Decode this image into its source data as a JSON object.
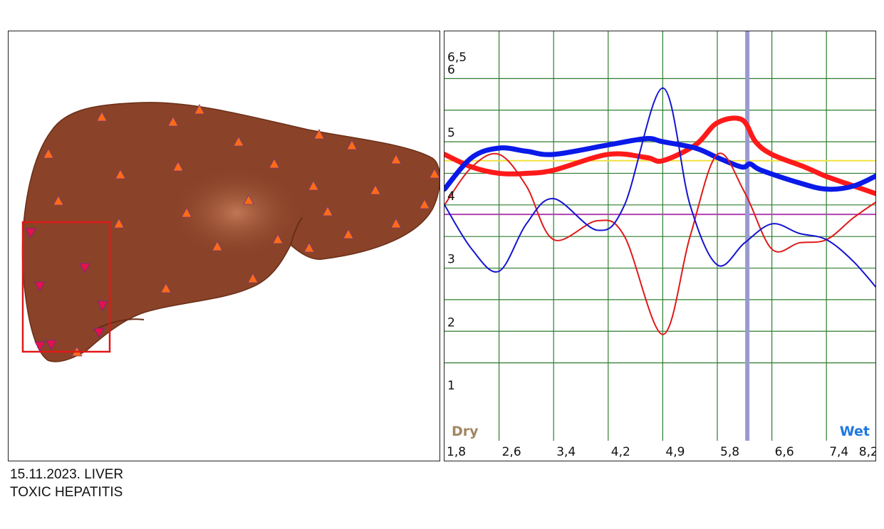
{
  "caption": {
    "line1": "15.11.2023. LIVER",
    "line2": "TOXIC HEPATITIS"
  },
  "liver_panel": {
    "organ_color": "#8a4328",
    "highlight_color": "#c0704e",
    "selection_box_color": "#e01818",
    "marker_up_color": "#ff6a18",
    "marker_down_color": "#e8104a"
  },
  "chart_data": {
    "type": "line",
    "x_ticks": [
      "1,8",
      "2,6",
      "3,4",
      "4,2",
      "4,9",
      "5,8",
      "6,6",
      "7,4",
      "8,2"
    ],
    "y_ticks": [
      "1",
      "2",
      "3",
      "4",
      "5",
      "6",
      "6,5"
    ],
    "ylim": [
      1,
      6.5
    ],
    "x_end_labels": {
      "left": "Dry",
      "right": "Wet"
    },
    "x_end_label_colors": {
      "left": "#a08660",
      "right": "#1e78e0"
    },
    "grid": true,
    "grid_color": "#2e7d2e",
    "marker_line": {
      "x_index": 5.55,
      "color": "#9a9ad2"
    },
    "reference_lines": [
      {
        "y": 4.7,
        "color": "#f0e040"
      },
      {
        "y": 3.85,
        "color": "#b040b0"
      }
    ],
    "series": [
      {
        "color": "#ff1a1a",
        "width": 7,
        "x": [
          0,
          0.5,
          1,
          1.5,
          2,
          3,
          3.7,
          4,
          4.6,
          5,
          5.45,
          5.7,
          6,
          6.6,
          7,
          7.5,
          8
        ],
        "values": [
          4.8,
          4.6,
          4.5,
          4.5,
          4.55,
          4.8,
          4.75,
          4.7,
          4.95,
          5.3,
          5.35,
          5.0,
          4.8,
          4.6,
          4.45,
          4.3,
          4.15
        ]
      },
      {
        "color": "#0a1ae8",
        "width": 7,
        "x": [
          0,
          0.5,
          1,
          1.5,
          2,
          3,
          3.7,
          4,
          4.6,
          5,
          5.45,
          5.6,
          5.8,
          6.5,
          7,
          7.5,
          8
        ],
        "values": [
          4.25,
          4.75,
          4.9,
          4.85,
          4.8,
          4.95,
          5.05,
          5.0,
          4.9,
          4.75,
          4.6,
          4.65,
          4.55,
          4.35,
          4.25,
          4.3,
          4.5
        ]
      },
      {
        "color": "#e01a1a",
        "width": 2,
        "x": [
          0,
          0.5,
          1,
          1.5,
          2,
          2.8,
          3.3,
          4,
          4.5,
          5,
          5.5,
          6,
          6.5,
          7,
          7.5,
          8
        ],
        "values": [
          4.0,
          4.6,
          4.8,
          4.3,
          3.45,
          3.75,
          3.5,
          1.95,
          3.5,
          4.8,
          4.2,
          3.3,
          3.4,
          3.45,
          3.8,
          4.1
        ]
      },
      {
        "color": "#1414d0",
        "width": 2,
        "x": [
          0,
          0.5,
          1,
          1.5,
          2,
          2.8,
          3.3,
          4,
          4.5,
          5,
          5.5,
          6,
          6.5,
          7,
          7.5,
          8
        ],
        "values": [
          4.0,
          3.3,
          2.95,
          3.7,
          4.1,
          3.6,
          4.0,
          5.85,
          4.0,
          3.05,
          3.4,
          3.7,
          3.55,
          3.45,
          3.1,
          2.6
        ]
      }
    ]
  }
}
